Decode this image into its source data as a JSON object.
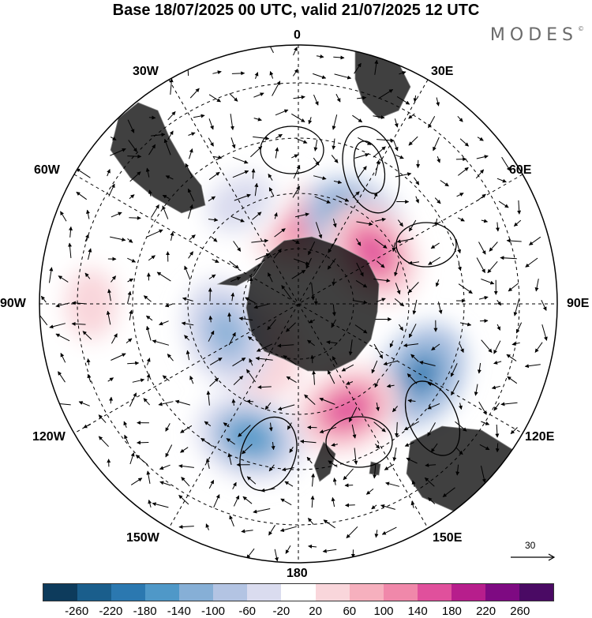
{
  "title": "Base 18/07/2025 00 UTC, valid 21/07/2025 12 UTC",
  "brand": "MODES",
  "brand_mark": "©",
  "longitude_labels": {
    "top": "0",
    "deg30e": "30E",
    "deg60e": "60E",
    "deg90e": "90E",
    "deg120e": "120E",
    "deg150e": "150E",
    "bottom": "180",
    "deg150w": "150W",
    "deg120w": "120W",
    "deg90w": "90W",
    "deg60w": "60W",
    "deg30w": "30W"
  },
  "reference_vector": "30",
  "colorbar": {
    "labels": [
      "-260",
      "-220",
      "-180",
      "-140",
      "-100",
      "-60",
      "-20",
      "20",
      "60",
      "100",
      "140",
      "180",
      "220",
      "260"
    ],
    "colors": [
      "#0d3b5c",
      "#1a5e8c",
      "#2b78b0",
      "#4f98c8",
      "#86afd6",
      "#b3c4e3",
      "#dadcef",
      "#ffffff",
      "#f9d6db",
      "#f6b0be",
      "#f088aa",
      "#e0509c",
      "#b71e8c",
      "#7e0a82",
      "#4a0a64"
    ]
  },
  "map": {
    "projection": "south polar stereographic",
    "land_color": "#e4e4e4",
    "anomaly_centers": [
      {
        "lon": 0,
        "colat": 0.3,
        "value": 120
      },
      {
        "lon": 35,
        "colat": 0.38,
        "value": -200
      },
      {
        "lon": 55,
        "colat": 0.35,
        "value": 150
      },
      {
        "lon": 120,
        "colat": 0.55,
        "value": -180
      },
      {
        "lon": 155,
        "colat": 0.45,
        "value": 150
      },
      {
        "lon": 200,
        "colat": 0.55,
        "value": -140
      },
      {
        "lon": 225,
        "colat": 0.25,
        "value": 60
      },
      {
        "lon": 248,
        "colat": 0.3,
        "value": -100
      },
      {
        "lon": 270,
        "colat": 0.8,
        "value": 50
      },
      {
        "lon": 330,
        "colat": 0.45,
        "value": -40
      }
    ]
  }
}
